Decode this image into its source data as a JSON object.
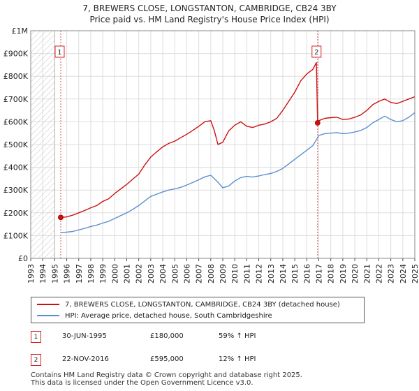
{
  "title_line1": "7, BREWERS CLOSE, LONGSTANTON, CAMBRIDGE, CB24 3BY",
  "title_line2": "Price paid vs. HM Land Registry's House Price Index (HPI)",
  "colors": {
    "property": "#cc1111",
    "hpi": "#5b8fcf",
    "grid": "#dddddd",
    "hatch": "#bbbbbb"
  },
  "legend": {
    "property_label": "7, BREWERS CLOSE, LONGSTANTON, CAMBRIDGE, CB24 3BY (detached house)",
    "hpi_label": "HPI: Average price, detached house, South Cambridgeshire"
  },
  "sales": [
    {
      "num": "1",
      "date": "30-JUN-1995",
      "price": "£180,000",
      "hpi_change": "59% ↑ HPI"
    },
    {
      "num": "2",
      "date": "22-NOV-2016",
      "price": "£595,000",
      "hpi_change": "12% ↑ HPI"
    }
  ],
  "footer": {
    "line1": "Contains HM Land Registry data © Crown copyright and database right 2025.",
    "line2": "This data is licensed under the Open Government Licence v3.0."
  },
  "chart_data": {
    "type": "line",
    "title": "7, BREWERS CLOSE, LONGSTANTON, CAMBRIDGE, CB24 3BY — Price paid vs. HM Land Registry's House Price Index (HPI)",
    "xlabel": "",
    "ylabel": "",
    "xlim": [
      1993,
      2025
    ],
    "ylim": [
      0,
      1000000
    ],
    "y_ticks": [
      {
        "v": 0,
        "label": "£0"
      },
      {
        "v": 100000,
        "label": "£100K"
      },
      {
        "v": 200000,
        "label": "£200K"
      },
      {
        "v": 300000,
        "label": "£300K"
      },
      {
        "v": 400000,
        "label": "£400K"
      },
      {
        "v": 500000,
        "label": "£500K"
      },
      {
        "v": 600000,
        "label": "£600K"
      },
      {
        "v": 700000,
        "label": "£700K"
      },
      {
        "v": 800000,
        "label": "£800K"
      },
      {
        "v": 900000,
        "label": "£900K"
      },
      {
        "v": 1000000,
        "label": "£1M"
      }
    ],
    "x_ticks": [
      "1993",
      "1994",
      "1995",
      "1996",
      "1997",
      "1998",
      "1999",
      "2000",
      "2001",
      "2002",
      "2003",
      "2004",
      "2005",
      "2006",
      "2007",
      "2008",
      "2009",
      "2010",
      "2011",
      "2012",
      "2013",
      "2014",
      "2015",
      "2016",
      "2017",
      "2018",
      "2019",
      "2020",
      "2021",
      "2022",
      "2023",
      "2024",
      "2025"
    ],
    "hatched_before": 1995.0,
    "sale_points": [
      {
        "label": "1",
        "x": 1995.5,
        "y": 180000
      },
      {
        "label": "2",
        "x": 2016.9,
        "y": 595000
      }
    ],
    "series": [
      {
        "name": "7, BREWERS CLOSE, LONGSTANTON, CAMBRIDGE, CB24 3BY (detached house)",
        "x": [
          1995.5,
          1996,
          1996.5,
          1997,
          1997.5,
          1998,
          1998.5,
          1999,
          1999.5,
          2000,
          2000.5,
          2001,
          2001.5,
          2002,
          2002.5,
          2003,
          2003.5,
          2004,
          2004.5,
          2005,
          2005.5,
          2006,
          2006.5,
          2007,
          2007.5,
          2008,
          2008.3,
          2008.6,
          2009,
          2009.5,
          2010,
          2010.5,
          2011,
          2011.5,
          2012,
          2012.5,
          2013,
          2013.5,
          2014,
          2014.5,
          2015,
          2015.5,
          2016,
          2016.5,
          2016.8,
          2016.9,
          2017,
          2017.5,
          2018,
          2018.5,
          2019,
          2019.5,
          2020,
          2020.5,
          2021,
          2021.5,
          2022,
          2022.5,
          2023,
          2023.5,
          2024,
          2024.5,
          2025
        ],
        "y": [
          180000,
          182000,
          190000,
          200000,
          210000,
          222000,
          232000,
          250000,
          262000,
          285000,
          305000,
          325000,
          348000,
          370000,
          410000,
          445000,
          468000,
          490000,
          505000,
          515000,
          530000,
          545000,
          562000,
          580000,
          600000,
          605000,
          560000,
          500000,
          510000,
          560000,
          585000,
          600000,
          580000,
          575000,
          585000,
          590000,
          600000,
          615000,
          650000,
          690000,
          730000,
          780000,
          810000,
          830000,
          860000,
          595000,
          605000,
          615000,
          618000,
          620000,
          610000,
          612000,
          620000,
          630000,
          650000,
          675000,
          690000,
          700000,
          685000,
          680000,
          690000,
          700000,
          710000
        ]
      },
      {
        "name": "HPI: Average price, detached house, South Cambridgeshire",
        "x": [
          1995.5,
          1996,
          1996.5,
          1997,
          1997.5,
          1998,
          1998.5,
          1999,
          1999.5,
          2000,
          2000.5,
          2001,
          2001.5,
          2002,
          2002.5,
          2003,
          2003.5,
          2004,
          2004.5,
          2005,
          2005.5,
          2006,
          2006.5,
          2007,
          2007.5,
          2008,
          2008.5,
          2009,
          2009.5,
          2010,
          2010.5,
          2011,
          2011.5,
          2012,
          2012.5,
          2013,
          2013.5,
          2014,
          2014.5,
          2015,
          2015.5,
          2016,
          2016.5,
          2016.9,
          2017,
          2017.5,
          2018,
          2018.5,
          2019,
          2019.5,
          2020,
          2020.5,
          2021,
          2021.5,
          2022,
          2022.5,
          2023,
          2023.5,
          2024,
          2024.5,
          2025
        ],
        "y": [
          113000,
          115000,
          118000,
          125000,
          132000,
          140000,
          146000,
          155000,
          163000,
          175000,
          188000,
          200000,
          215000,
          232000,
          252000,
          272000,
          282000,
          292000,
          300000,
          305000,
          312000,
          322000,
          333000,
          345000,
          358000,
          365000,
          340000,
          310000,
          318000,
          340000,
          355000,
          360000,
          357000,
          362000,
          368000,
          373000,
          382000,
          395000,
          415000,
          435000,
          455000,
          475000,
          495000,
          530000,
          540000,
          548000,
          550000,
          552000,
          548000,
          550000,
          555000,
          562000,
          575000,
          595000,
          610000,
          625000,
          610000,
          600000,
          605000,
          620000,
          640000
        ]
      }
    ]
  }
}
